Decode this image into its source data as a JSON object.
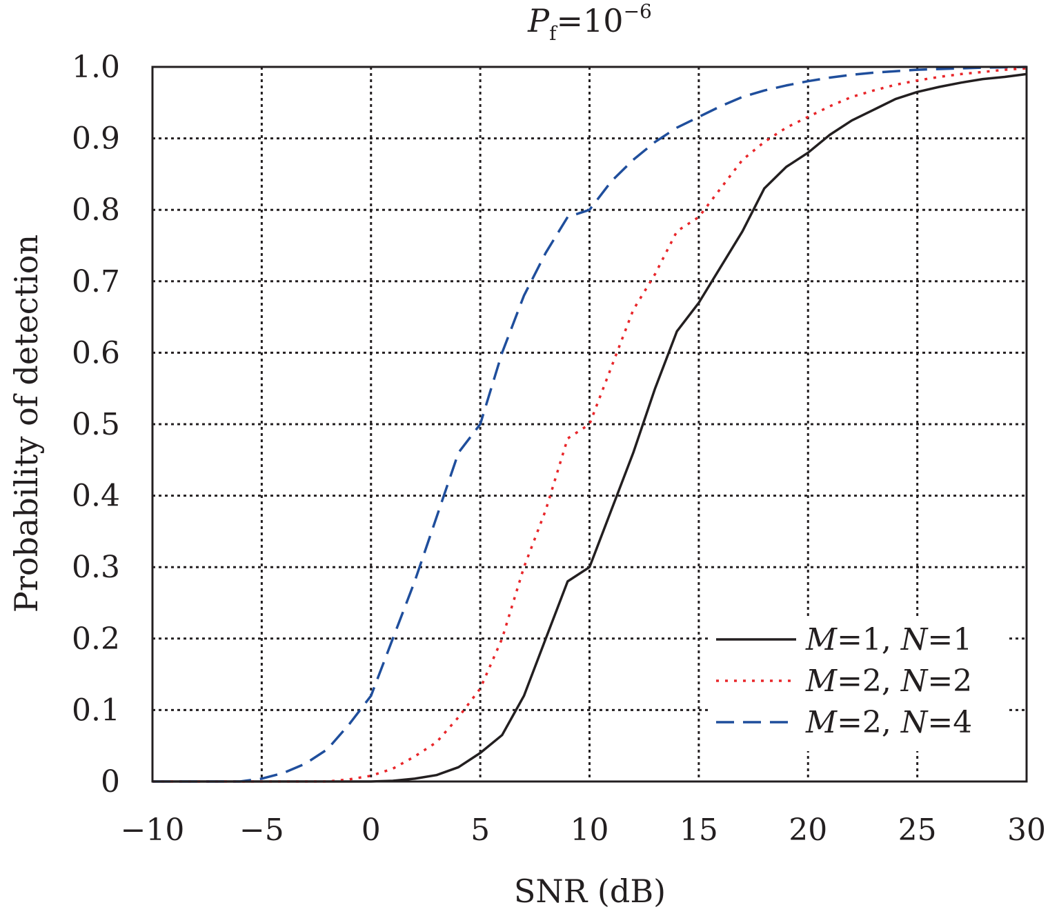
{
  "chart_data": {
    "type": "line",
    "title": {
      "symbol": "P",
      "subscript": "f",
      "relation": "=10",
      "exponent": "−6"
    },
    "xlabel": "SNR (dB)",
    "ylabel": "Probability of detection",
    "xlim": [
      -10,
      30
    ],
    "ylim": [
      0,
      1.0
    ],
    "xticks": [
      -10,
      -5,
      0,
      5,
      10,
      15,
      20,
      25,
      30
    ],
    "xtick_labels": [
      "−10",
      "−5",
      "0",
      "5",
      "10",
      "15",
      "20",
      "25",
      "30"
    ],
    "yticks": [
      0,
      0.1,
      0.2,
      0.3,
      0.4,
      0.5,
      0.6,
      0.7,
      0.8,
      0.9,
      1.0
    ],
    "ytick_labels": [
      "0",
      "0.1",
      "0.2",
      "0.3",
      "0.4",
      "0.5",
      "0.6",
      "0.7",
      "0.8",
      "0.9",
      "1.0"
    ],
    "grid": true,
    "legend_position": "bottom-right",
    "series": [
      {
        "label": {
          "m_sym": "M",
          "m_val": "=1, ",
          "n_sym": "N",
          "n_val": "=1"
        },
        "color": "#231f20",
        "dash": "solid",
        "points": [
          [
            -10,
            0
          ],
          [
            0,
            0
          ],
          [
            1,
            0.001
          ],
          [
            2,
            0.004
          ],
          [
            3,
            0.009
          ],
          [
            4,
            0.02
          ],
          [
            5,
            0.04
          ],
          [
            6,
            0.065
          ],
          [
            7,
            0.12
          ],
          [
            8,
            0.2
          ],
          [
            9,
            0.28
          ],
          [
            10,
            0.3
          ],
          [
            11,
            0.38
          ],
          [
            12,
            0.46
          ],
          [
            13,
            0.55
          ],
          [
            14,
            0.63
          ],
          [
            15,
            0.67
          ],
          [
            16,
            0.72
          ],
          [
            17,
            0.77
          ],
          [
            18,
            0.83
          ],
          [
            19,
            0.86
          ],
          [
            20,
            0.88
          ],
          [
            21,
            0.905
          ],
          [
            22,
            0.925
          ],
          [
            23,
            0.94
          ],
          [
            24,
            0.955
          ],
          [
            25,
            0.965
          ],
          [
            26,
            0.972
          ],
          [
            27,
            0.978
          ],
          [
            28,
            0.983
          ],
          [
            29,
            0.986
          ],
          [
            30,
            0.99
          ]
        ]
      },
      {
        "label": {
          "m_sym": "M",
          "m_val": "=2, ",
          "n_sym": "N",
          "n_val": "=2"
        },
        "color": "#e8262a",
        "dash": "dotted",
        "points": [
          [
            -10,
            0
          ],
          [
            -2,
            0
          ],
          [
            -1,
            0.003
          ],
          [
            0,
            0.008
          ],
          [
            1,
            0.018
          ],
          [
            2,
            0.035
          ],
          [
            3,
            0.055
          ],
          [
            4,
            0.09
          ],
          [
            5,
            0.13
          ],
          [
            6,
            0.2
          ],
          [
            7,
            0.3
          ],
          [
            8,
            0.38
          ],
          [
            9,
            0.48
          ],
          [
            10,
            0.5
          ],
          [
            11,
            0.58
          ],
          [
            12,
            0.66
          ],
          [
            13,
            0.71
          ],
          [
            14,
            0.77
          ],
          [
            15,
            0.79
          ],
          [
            16,
            0.83
          ],
          [
            17,
            0.87
          ],
          [
            18,
            0.895
          ],
          [
            19,
            0.915
          ],
          [
            20,
            0.93
          ],
          [
            21,
            0.945
          ],
          [
            22,
            0.958
          ],
          [
            23,
            0.967
          ],
          [
            24,
            0.975
          ],
          [
            25,
            0.981
          ],
          [
            26,
            0.986
          ],
          [
            27,
            0.99
          ],
          [
            28,
            0.993
          ],
          [
            29,
            0.996
          ],
          [
            30,
            0.998
          ]
        ]
      },
      {
        "label": {
          "m_sym": "M",
          "m_val": "=2, ",
          "n_sym": "N",
          "n_val": "=4"
        },
        "color": "#1f4e9c",
        "dash": "dashed",
        "points": [
          [
            -10,
            0
          ],
          [
            -6,
            0
          ],
          [
            -5,
            0.004
          ],
          [
            -4,
            0.012
          ],
          [
            -3,
            0.025
          ],
          [
            -2,
            0.045
          ],
          [
            -1,
            0.08
          ],
          [
            0,
            0.12
          ],
          [
            1,
            0.2
          ],
          [
            2,
            0.28
          ],
          [
            3,
            0.37
          ],
          [
            4,
            0.46
          ],
          [
            5,
            0.5
          ],
          [
            6,
            0.6
          ],
          [
            7,
            0.68
          ],
          [
            8,
            0.74
          ],
          [
            9,
            0.79
          ],
          [
            10,
            0.8
          ],
          [
            11,
            0.84
          ],
          [
            12,
            0.87
          ],
          [
            13,
            0.895
          ],
          [
            14,
            0.915
          ],
          [
            15,
            0.93
          ],
          [
            16,
            0.945
          ],
          [
            17,
            0.958
          ],
          [
            18,
            0.967
          ],
          [
            19,
            0.974
          ],
          [
            20,
            0.98
          ],
          [
            21,
            0.985
          ],
          [
            22,
            0.989
          ],
          [
            23,
            0.992
          ],
          [
            24,
            0.994
          ],
          [
            25,
            0.996
          ],
          [
            26,
            0.997
          ],
          [
            27,
            0.998
          ],
          [
            28,
            0.999
          ],
          [
            29,
            0.9995
          ],
          [
            30,
            1.0
          ]
        ]
      }
    ]
  }
}
